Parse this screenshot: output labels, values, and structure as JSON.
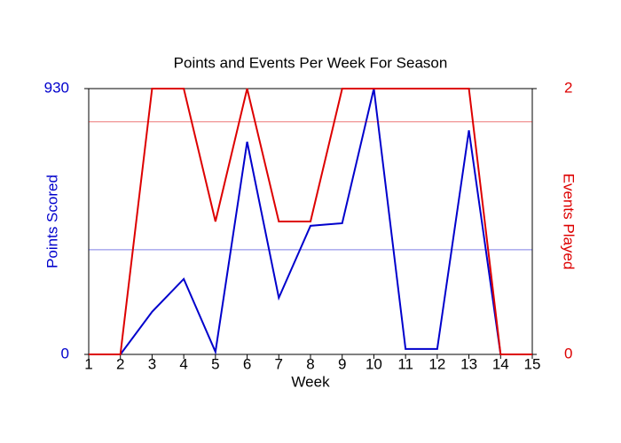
{
  "chart_data": {
    "type": "line",
    "title": "Points and Events Per Week For Season",
    "x_label": "Week",
    "y_label": "Points Scored",
    "y2_label": "Events Played",
    "x": [
      1,
      2,
      3,
      4,
      5,
      6,
      7,
      8,
      9,
      10,
      11,
      12,
      13,
      14,
      15
    ],
    "xlim": [
      1,
      15
    ],
    "xticks": [
      1,
      2,
      3,
      4,
      5,
      6,
      7,
      8,
      9,
      10,
      11,
      12,
      13,
      14,
      15
    ],
    "ylim": [
      0,
      930
    ],
    "yticks": [
      0,
      930
    ],
    "y_color": "#0000cc",
    "y2lim": [
      0,
      2
    ],
    "y2ticks": [
      0,
      2
    ],
    "y2_color": "#dd0000",
    "series": [
      {
        "color": "#0000cc",
        "axis": "y",
        "reference": 366,
        "values": [
          0,
          0,
          149,
          264,
          9,
          744,
          198,
          450,
          459,
          930,
          19,
          19,
          784,
          0,
          0
        ]
      },
      {
        "color": "#dd0000",
        "axis": "y2",
        "reference": 1.75,
        "values": [
          0,
          0,
          2,
          2,
          1,
          2,
          1,
          1,
          2,
          2,
          2,
          2,
          2,
          0,
          0
        ]
      }
    ]
  }
}
